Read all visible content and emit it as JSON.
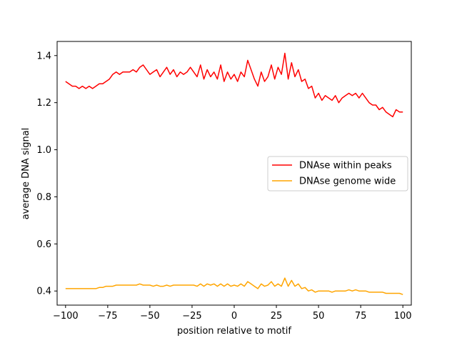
{
  "chart_data": {
    "type": "line",
    "title": "",
    "xlabel": "position relative to motif",
    "ylabel": "average DNA signal",
    "xlim": [
      -105,
      105
    ],
    "ylim": [
      0.34,
      1.46
    ],
    "xticks": [
      -100,
      -75,
      -50,
      -25,
      0,
      25,
      50,
      75,
      100
    ],
    "xtick_labels": [
      "−100",
      "−75",
      "−50",
      "−25",
      "0",
      "25",
      "50",
      "75",
      "100"
    ],
    "yticks": [
      0.4,
      0.6,
      0.8,
      1.0,
      1.2,
      1.4
    ],
    "ytick_labels": [
      "0.4",
      "0.6",
      "0.8",
      "1.0",
      "1.2",
      "1.4"
    ],
    "grid": false,
    "legend_position": "center-right",
    "x": [
      -100,
      -98,
      -96,
      -94,
      -92,
      -90,
      -88,
      -86,
      -84,
      -82,
      -80,
      -78,
      -76,
      -74,
      -72,
      -70,
      -68,
      -66,
      -64,
      -62,
      -60,
      -58,
      -56,
      -54,
      -52,
      -50,
      -48,
      -46,
      -44,
      -42,
      -40,
      -38,
      -36,
      -34,
      -32,
      -30,
      -28,
      -26,
      -24,
      -22,
      -20,
      -18,
      -16,
      -14,
      -12,
      -10,
      -8,
      -6,
      -4,
      -2,
      0,
      2,
      4,
      6,
      8,
      10,
      12,
      14,
      16,
      18,
      20,
      22,
      24,
      26,
      28,
      30,
      32,
      34,
      36,
      38,
      40,
      42,
      44,
      46,
      48,
      50,
      52,
      54,
      56,
      58,
      60,
      62,
      64,
      66,
      68,
      70,
      72,
      74,
      76,
      78,
      80,
      82,
      84,
      86,
      88,
      90,
      92,
      94,
      96,
      98,
      100
    ],
    "series": [
      {
        "name": "DNAse within peaks",
        "color": "#ff0000",
        "values": [
          1.29,
          1.28,
          1.27,
          1.27,
          1.26,
          1.27,
          1.26,
          1.27,
          1.26,
          1.27,
          1.28,
          1.28,
          1.29,
          1.3,
          1.32,
          1.33,
          1.32,
          1.33,
          1.33,
          1.33,
          1.34,
          1.33,
          1.35,
          1.36,
          1.34,
          1.32,
          1.33,
          1.34,
          1.31,
          1.33,
          1.35,
          1.32,
          1.34,
          1.31,
          1.33,
          1.32,
          1.33,
          1.35,
          1.33,
          1.31,
          1.36,
          1.3,
          1.34,
          1.31,
          1.33,
          1.3,
          1.36,
          1.29,
          1.33,
          1.3,
          1.32,
          1.29,
          1.33,
          1.31,
          1.38,
          1.34,
          1.3,
          1.27,
          1.33,
          1.29,
          1.31,
          1.36,
          1.3,
          1.35,
          1.32,
          1.41,
          1.3,
          1.37,
          1.31,
          1.34,
          1.29,
          1.3,
          1.26,
          1.27,
          1.22,
          1.24,
          1.21,
          1.23,
          1.22,
          1.21,
          1.23,
          1.2,
          1.22,
          1.23,
          1.24,
          1.23,
          1.24,
          1.22,
          1.24,
          1.22,
          1.2,
          1.19,
          1.19,
          1.17,
          1.18,
          1.16,
          1.15,
          1.14,
          1.17,
          1.16,
          1.16
        ]
      },
      {
        "name": "DNAse genome wide",
        "color": "#ffa500",
        "values": [
          0.41,
          0.41,
          0.41,
          0.41,
          0.41,
          0.41,
          0.41,
          0.41,
          0.41,
          0.41,
          0.415,
          0.415,
          0.42,
          0.42,
          0.42,
          0.425,
          0.425,
          0.425,
          0.425,
          0.425,
          0.425,
          0.425,
          0.43,
          0.425,
          0.425,
          0.425,
          0.42,
          0.425,
          0.42,
          0.42,
          0.425,
          0.42,
          0.425,
          0.425,
          0.425,
          0.425,
          0.425,
          0.425,
          0.425,
          0.42,
          0.43,
          0.42,
          0.43,
          0.425,
          0.43,
          0.42,
          0.43,
          0.42,
          0.43,
          0.42,
          0.425,
          0.42,
          0.43,
          0.42,
          0.44,
          0.43,
          0.42,
          0.41,
          0.43,
          0.42,
          0.425,
          0.44,
          0.42,
          0.43,
          0.42,
          0.455,
          0.42,
          0.445,
          0.42,
          0.43,
          0.41,
          0.415,
          0.4,
          0.405,
          0.395,
          0.4,
          0.4,
          0.4,
          0.4,
          0.395,
          0.4,
          0.4,
          0.4,
          0.4,
          0.405,
          0.4,
          0.405,
          0.4,
          0.4,
          0.4,
          0.395,
          0.395,
          0.395,
          0.395,
          0.395,
          0.39,
          0.39,
          0.39,
          0.39,
          0.39,
          0.385
        ]
      }
    ]
  }
}
